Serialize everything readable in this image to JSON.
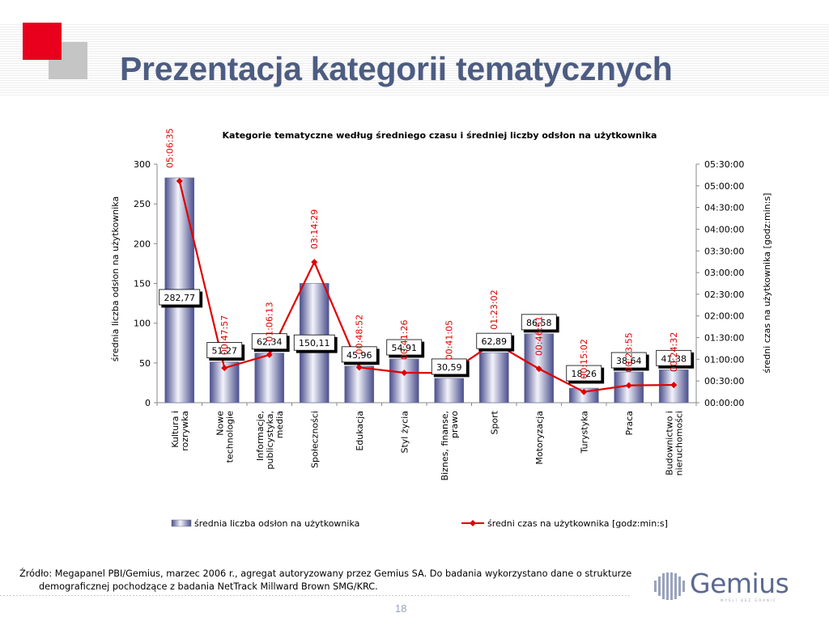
{
  "slide": {
    "title": "Prezentacja kategorii tematycznych",
    "page_number": "18",
    "source_line1": "Źródło: Megapanel PBI/Gemius, marzec 2006 r., agregat autoryzowany przez Gemius SA. Do badania wykorzystano dane o strukturze",
    "source_line2": "demograficznej pochodzące z badania NetTrack Millward Brown SMG/KRC."
  },
  "logo": {
    "name": "Gemius",
    "tagline": "MYŚLI BEZ GRANIC"
  },
  "colors": {
    "title": "#4d5d82",
    "accent_red": "#e8001d",
    "bar_fill": "#8a8fc0",
    "line": "#e00000"
  },
  "chart_data": {
    "type": "bar",
    "title": "Kategorie tematyczne według średniego czasu i średniej liczby odsłon na użytkownika",
    "categories": [
      "Kultura i\nrozrywka",
      "Nowe\ntechnologie",
      "Informacje,\npublicystyka,\nmedia",
      "Społeczności",
      "Edukacja",
      "Styl życia",
      "Biznes, finanse,\nprawo",
      "Sport",
      "Motoryzacja",
      "Turystyka",
      "Praca",
      "Budownictwo i\nnieruchomości"
    ],
    "ylabel": "średnia liczba odsłon na użytkownika",
    "y2label": "średni czas na użytkownika [godz:min:s]",
    "ylim": [
      0,
      300
    ],
    "yticks": [
      0,
      50,
      100,
      150,
      200,
      250,
      300
    ],
    "y2lim": [
      0,
      330
    ],
    "y2ticks": [
      "00:00:00",
      "00:30:00",
      "01:00:00",
      "01:30:00",
      "02:00:00",
      "02:30:00",
      "03:00:00",
      "03:30:00",
      "04:00:00",
      "04:30:00",
      "05:00:00",
      "05:30:00"
    ],
    "grid": false,
    "legend_position": "bottom",
    "series": [
      {
        "name": "średnia liczba odsłon na użytkownika",
        "type": "bar",
        "axis": "left",
        "values": [
          282.77,
          51.27,
          62.34,
          150.11,
          45.96,
          54.91,
          30.59,
          62.89,
          86.58,
          18.26,
          38.64,
          41.38
        ],
        "labels": [
          "282,77",
          "51,27",
          "62,34",
          "150,11",
          "45,96",
          "54,91",
          "30,59",
          "62,89",
          "86,58",
          "18,26",
          "38,64",
          "41,38"
        ]
      },
      {
        "name": "średni czas na użytkownika [godz:min:s]",
        "type": "line",
        "axis": "right",
        "values": [
          306.58,
          47.95,
          66.22,
          194.48,
          48.87,
          41.43,
          41.08,
          83.03,
          46.85,
          15.03,
          23.92,
          24.53
        ],
        "labels": [
          "05:06:35",
          "00:47:57",
          "01:06:13",
          "03:14:29",
          "00:48:52",
          "00:41:26",
          "00:41:05",
          "01:23:02",
          "00:46:51",
          "00:15:02",
          "00:23:55",
          "00:24:32"
        ]
      }
    ]
  }
}
